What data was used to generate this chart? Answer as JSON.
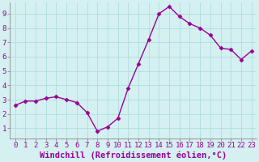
{
  "x": [
    0,
    1,
    2,
    3,
    4,
    5,
    6,
    7,
    8,
    9,
    10,
    11,
    12,
    13,
    14,
    15,
    16,
    17,
    18,
    19,
    20,
    21,
    22,
    23
  ],
  "y": [
    2.6,
    2.9,
    2.9,
    3.1,
    3.2,
    3.0,
    2.8,
    2.1,
    0.8,
    1.1,
    1.7,
    3.8,
    5.5,
    7.2,
    9.0,
    9.5,
    8.8,
    8.3,
    8.0,
    7.5,
    6.6,
    6.5,
    5.8,
    6.4
  ],
  "line_color": "#990099",
  "marker": "D",
  "marker_size": 2.5,
  "xlabel": "Windchill (Refroidissement éolien,°C)",
  "xlabel_fontsize": 7.5,
  "ylabel_ticks": [
    1,
    2,
    3,
    4,
    5,
    6,
    7,
    8,
    9
  ],
  "xlim": [
    -0.5,
    23.5
  ],
  "ylim": [
    0.3,
    9.8
  ],
  "background_color": "#d4f0f0",
  "grid_color": "#b0dede",
  "tick_fontsize": 6.5,
  "tick_color": "#990099",
  "line_width": 1.0,
  "xlabel_color": "#990099",
  "spine_color": "#888888",
  "figure_width": 3.2,
  "figure_height": 2.0,
  "dpi": 100
}
